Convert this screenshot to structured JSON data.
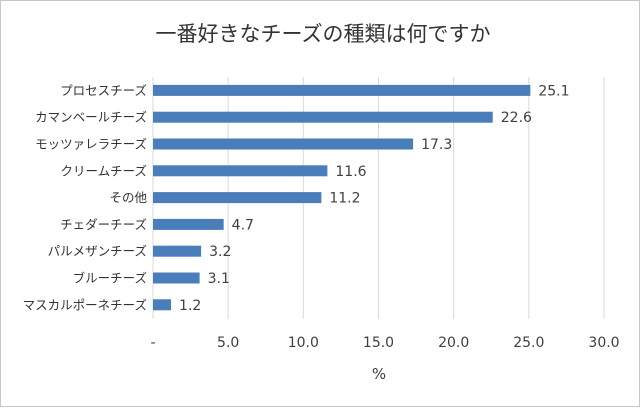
{
  "chart_data": {
    "type": "bar",
    "orientation": "horizontal",
    "title": "一番好きなチーズの種類は何ですか",
    "xlabel": "%",
    "ylabel": "",
    "categories": [
      "プロセスチーズ",
      "カマンベールチーズ",
      "モッツァレラチーズ",
      "クリームチーズ",
      "その他",
      "チェダーチーズ",
      "パルメザンチーズ",
      "ブルーチーズ",
      "マスカルポーネチーズ"
    ],
    "values": [
      25.1,
      22.6,
      17.3,
      11.6,
      11.2,
      4.7,
      3.2,
      3.1,
      1.2
    ],
    "value_labels": [
      "25.1",
      "22.6",
      "17.3",
      "11.6",
      "11.2",
      "4.7",
      "3.2",
      "3.1",
      "1.2"
    ],
    "xlim": [
      0,
      30
    ],
    "x_ticks": [
      0,
      5,
      10,
      15,
      20,
      25,
      30
    ],
    "x_tick_labels": [
      "-",
      "5.0",
      "10.0",
      "15.0",
      "20.0",
      "25.0",
      "30.0"
    ],
    "grid": true,
    "legend": false,
    "colors": {
      "bar": "#4a7ebb"
    }
  }
}
